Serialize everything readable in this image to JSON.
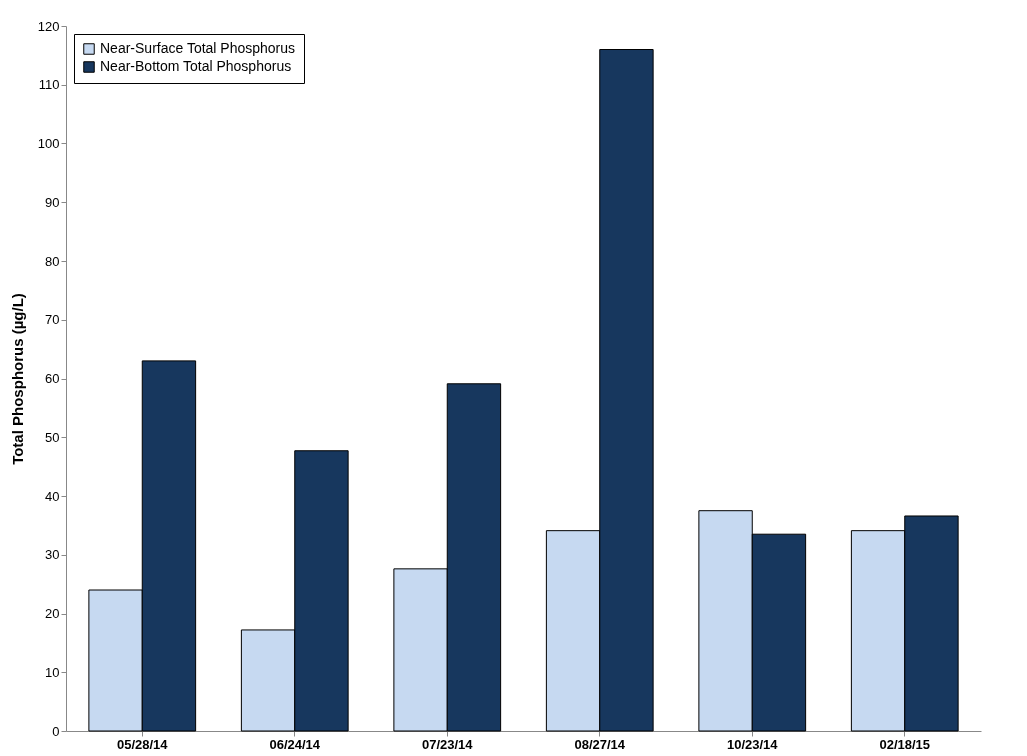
{
  "chart_data": {
    "type": "bar",
    "ylabel": "Total Phosphorus (µg/L)",
    "categories": [
      "05/28/14",
      "06/24/14",
      "07/23/14",
      "08/27/14",
      "10/23/14",
      "02/18/15"
    ],
    "series": [
      {
        "name": "Near-Surface Total Phosphorus",
        "color": "#c6d9f1",
        "values": [
          24.0,
          17.2,
          27.6,
          34.1,
          37.5,
          34.1
        ]
      },
      {
        "name": "Near-Bottom Total Phosphorus",
        "color": "#17375e",
        "values": [
          63.0,
          47.7,
          59.1,
          116.0,
          33.5,
          36.6
        ]
      }
    ],
    "ylim": [
      0,
      120
    ],
    "yticks": [
      0,
      10,
      20,
      30,
      40,
      50,
      60,
      70,
      80,
      90,
      100,
      110,
      120
    ],
    "grid": false,
    "legend": "top left"
  }
}
